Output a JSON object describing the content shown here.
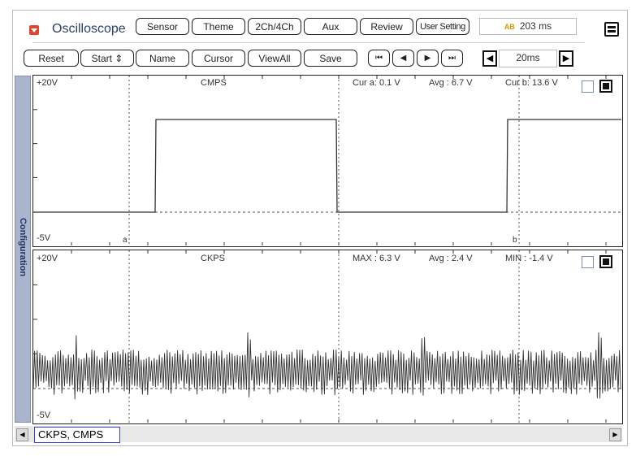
{
  "header": {
    "title": "Oscilloscope",
    "time_readout": "203 ms",
    "time_icon": "ab-cursor-icon"
  },
  "toolbar_top": [
    {
      "label": "Sensor"
    },
    {
      "label": "Theme"
    },
    {
      "label": "2Ch/4Ch"
    },
    {
      "label": "Aux"
    },
    {
      "label": "Review"
    },
    {
      "label": "User Setting"
    }
  ],
  "toolbar_bottom": [
    {
      "label": "Reset"
    },
    {
      "label": "Start ⇕"
    },
    {
      "label": "Name"
    },
    {
      "label": "Cursor"
    },
    {
      "label": "ViewAll"
    },
    {
      "label": "Save"
    }
  ],
  "nav": {
    "first": "⏮",
    "prev": "◀",
    "next": "▶",
    "last": "⏭",
    "timebase": "20ms"
  },
  "sidebar": {
    "label": "Configuration"
  },
  "channel1": {
    "name": "CMPS",
    "ymax": "+20V",
    "ymin": "-5V",
    "stat1": "Cur a: 0.1 V",
    "stat2": "Avg  : 6.7 V",
    "stat3": "Cur b: 13.6 V",
    "cursor_a": "a",
    "cursor_b": "b"
  },
  "channel2": {
    "name": "CKPS",
    "ymax": "+20V",
    "ymin": "-5V",
    "stat1": "MAX  : 6.3 V",
    "stat2": "Avg  : 2.4 V",
    "stat3": "MIN  : -1.4 V"
  },
  "footer": {
    "channels": "CKPS, CMPS"
  }
}
